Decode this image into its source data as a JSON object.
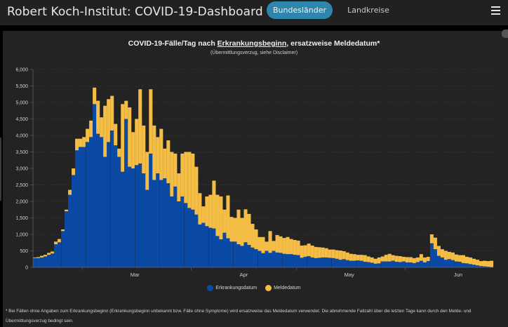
{
  "header": {
    "app_title": "Robert Koch-Institut: COVID-19-Dashboard",
    "tabs": [
      {
        "label": "Bundesländer",
        "active": true
      },
      {
        "label": "Landkreise",
        "active": false
      }
    ],
    "menu_icon": "hamburger-menu-icon"
  },
  "chart": {
    "title_prefix": "COVID-19-Fälle/Tag nach ",
    "title_link": "Erkrankungsbeginn",
    "title_suffix": ", ersatzweise Meldedatum*",
    "subtitle": "(Übermittlungsverzug, siehe Disclaimer)"
  },
  "legend": {
    "items": [
      {
        "label": "Erkrankungsdatum",
        "color": "#0a4aa6"
      },
      {
        "label": "Meldedatum",
        "color": "#f4bd45"
      }
    ]
  },
  "disclaimer": "* Bei Fällen ohne Angaben zum Erkrankungsbeginn (Erkrankungsbeginn unbekannt bzw. Fälle ohne Symptome) wird ersatzweise das Meldedatum verwendet. Die abnehmende Fallzahl über die letzten Tage kann durch den Melde- und Übermittlungsverzug bedingt sein.",
  "colors": {
    "erkrankungsdatum": "#0a4aa6",
    "meldedatum": "#f4bd45",
    "accent": "#2e86ad",
    "background": "#232323"
  },
  "chart_data": {
    "type": "bar",
    "stacked": true,
    "title": "COVID-19-Fälle/Tag nach Erkrankungsbeginn, ersatzweise Meldedatum*",
    "subtitle": "(Übermittlungsverzug, siehe Disclaimer)",
    "xlabel": "",
    "ylabel": "",
    "ylim": [
      0,
      6000
    ],
    "yticks": [
      0,
      500,
      1000,
      1500,
      2000,
      2500,
      3000,
      3500,
      4000,
      4500,
      5000,
      5500,
      6000
    ],
    "ytick_labels": [
      "0",
      "500",
      "1,000",
      "1,500",
      "2,000",
      "2,500",
      "3,000",
      "3,500",
      "4,000",
      "4,500",
      "5,000",
      "5,500",
      "6,000"
    ],
    "x_start": "2020-02-16",
    "month_ticks": [
      {
        "label": "Mar",
        "day_index": 14
      },
      {
        "label": "Apr",
        "day_index": 45
      },
      {
        "label": "May",
        "day_index": 75
      },
      {
        "label": "Jun",
        "day_index": 106
      }
    ],
    "grid": true,
    "legend_position": "bottom-center",
    "series": [
      {
        "name": "Erkrankungsdatum",
        "color": "#0a4aa6",
        "values": [
          280,
          280,
          300,
          330,
          380,
          420,
          700,
          760,
          1100,
          1700,
          2200,
          2800,
          3550,
          3650,
          3650,
          3800,
          3950,
          4950,
          4050,
          3950,
          3350,
          3800,
          4150,
          3700,
          3350,
          2900,
          4500,
          3050,
          3000,
          3100,
          3150,
          2850,
          2350,
          3450,
          2650,
          2850,
          2650,
          2700,
          2550,
          2150,
          2450,
          2000,
          2150,
          1950,
          1800,
          1750,
          1600,
          1300,
          1350,
          1250,
          1200,
          1180,
          950,
          850,
          1050,
          880,
          780,
          780,
          700,
          650,
          760,
          680,
          600,
          550,
          500,
          430,
          500,
          440,
          500,
          450,
          440,
          410,
          400,
          400,
          380,
          370,
          290,
          320,
          340,
          300,
          280,
          290,
          300,
          300,
          290,
          280,
          260,
          230,
          250,
          220,
          200,
          200,
          210,
          200,
          170,
          160,
          140,
          110,
          120,
          180,
          180,
          180,
          200,
          170,
          160,
          180,
          150,
          150,
          130,
          160,
          200,
          150,
          190,
          730,
          550,
          350,
          300,
          230,
          250,
          220,
          180,
          170,
          130,
          120,
          100,
          80,
          60,
          40,
          30,
          20,
          10
        ],
        "note": "approximate daily values read from the chart"
      },
      {
        "name": "Meldedatum",
        "color": "#f4bd45",
        "values": [
          20,
          30,
          50,
          50,
          60,
          60,
          80,
          100,
          50,
          50,
          150,
          200,
          350,
          250,
          300,
          400,
          500,
          500,
          1000,
          600,
          1550,
          1300,
          1050,
          650,
          250,
          2050,
          550,
          1800,
          1100,
          1400,
          2250,
          1450,
          1150,
          1950,
          1650,
          1100,
          1550,
          900,
          1300,
          1350,
          1000,
          850,
          1300,
          1550,
          1700,
          1700,
          1450,
          950,
          500,
          900,
          1000,
          1450,
          1250,
          1300,
          700,
          1300,
          750,
          720,
          1050,
          850,
          1000,
          940,
          720,
          600,
          420,
          490,
          280,
          660,
          300,
          530,
          500,
          480,
          520,
          460,
          450,
          440,
          370,
          350,
          380,
          360,
          340,
          320,
          300,
          280,
          250,
          260,
          260,
          280,
          240,
          230,
          210,
          200,
          170,
          180,
          200,
          170,
          160,
          150,
          180,
          150,
          200,
          230,
          170,
          180,
          180,
          140,
          160,
          160,
          150,
          140,
          200,
          150,
          130,
          270,
          350,
          300,
          250,
          270,
          220,
          230,
          210,
          200,
          240,
          200,
          200,
          180,
          170,
          150,
          170,
          170,
          190
        ]
      }
    ]
  }
}
